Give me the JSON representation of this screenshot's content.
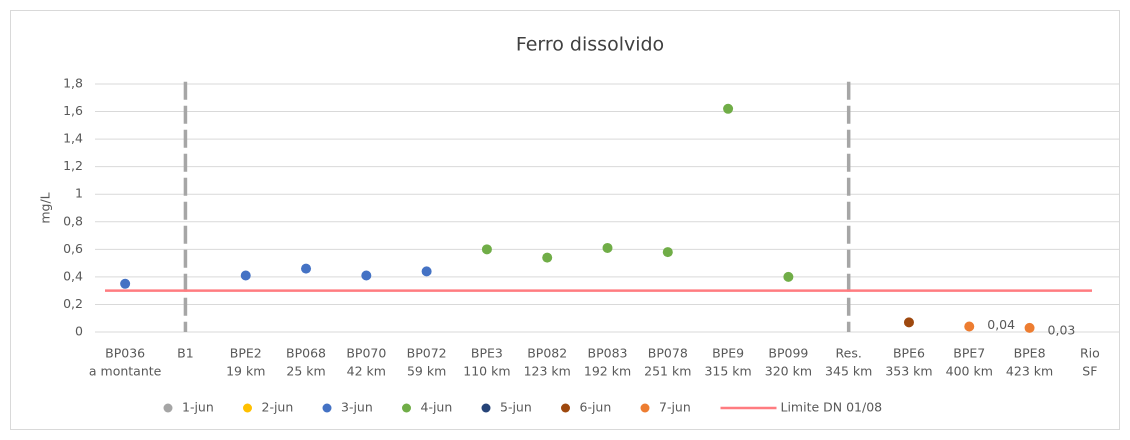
{
  "chart_data": {
    "type": "scatter",
    "title": "Ferro dissolvido",
    "y_label": "mg/L",
    "categories": [
      [
        "BP036",
        "a montante"
      ],
      [
        "B1"
      ],
      [
        "BPE2",
        "19 km"
      ],
      [
        "BP068",
        "25 km"
      ],
      [
        "BP070",
        "42 km"
      ],
      [
        "BP072",
        "59 km"
      ],
      [
        "BPE3",
        "110 km"
      ],
      [
        "BP082",
        "123 km"
      ],
      [
        "BP083",
        "192 km"
      ],
      [
        "BP078",
        "251 km"
      ],
      [
        "BPE9",
        "315 km"
      ],
      [
        "BP099",
        "320 km"
      ],
      [
        "Res.",
        "345 km"
      ],
      [
        "BPE6",
        "353 km"
      ],
      [
        "BPE7",
        "400 km"
      ],
      [
        "BPE8",
        "423 km"
      ],
      [
        "Rio",
        "SF"
      ]
    ],
    "ylim": [
      0,
      1.8
    ],
    "yticks": [
      0,
      {
        "value": 0.2,
        "label": "0,2"
      },
      {
        "value": 0.4,
        "label": "0,4"
      },
      {
        "value": 0.6,
        "label": "0,6"
      },
      {
        "value": 0.8,
        "label": "0,8"
      },
      1,
      {
        "value": 1.2,
        "label": "1,2"
      },
      {
        "value": 1.4,
        "label": "1,4"
      },
      {
        "value": 1.6,
        "label": "1,6"
      },
      {
        "value": 1.8,
        "label": "1,8"
      }
    ],
    "grid": true,
    "legend": "bottom",
    "dividers": {
      "color": "#a6a6a6",
      "categories": [
        1,
        12
      ]
    },
    "series": [
      {
        "name": "1-jun",
        "color": "#a5a5a5",
        "values": [
          null,
          null,
          null,
          null,
          null,
          null,
          null,
          null,
          null,
          null,
          null,
          null,
          null,
          null,
          null,
          null,
          null
        ]
      },
      {
        "name": "2-jun",
        "color": "#ffc000",
        "values": [
          null,
          null,
          null,
          null,
          null,
          null,
          null,
          null,
          null,
          null,
          null,
          null,
          null,
          null,
          null,
          null,
          null
        ]
      },
      {
        "name": "3-jun",
        "color": "#4472c4",
        "values": [
          0.35,
          null,
          0.41,
          0.46,
          0.41,
          0.44,
          null,
          null,
          null,
          null,
          null,
          null,
          null,
          null,
          null,
          null,
          null
        ]
      },
      {
        "name": "4-jun",
        "color": "#70ad47",
        "values": [
          null,
          null,
          null,
          null,
          null,
          null,
          0.6,
          0.54,
          0.61,
          0.58,
          1.62,
          0.4,
          null,
          null,
          null,
          null,
          null
        ]
      },
      {
        "name": "5-jun",
        "color": "#264478",
        "values": [
          null,
          null,
          null,
          null,
          null,
          null,
          null,
          null,
          null,
          null,
          null,
          null,
          null,
          null,
          null,
          null,
          null
        ]
      },
      {
        "name": "6-jun",
        "color": "#9e480e",
        "values": [
          null,
          null,
          null,
          null,
          null,
          null,
          null,
          null,
          null,
          null,
          null,
          null,
          null,
          0.07,
          null,
          null,
          null
        ]
      },
      {
        "name": "7-jun",
        "color": "#ed7d31",
        "values": [
          null,
          null,
          null,
          null,
          null,
          null,
          null,
          null,
          null,
          null,
          null,
          null,
          null,
          null,
          0.04,
          0.03,
          null
        ],
        "value_labels": [
          null,
          null,
          null,
          null,
          null,
          null,
          null,
          null,
          null,
          null,
          null,
          null,
          null,
          null,
          "0,04",
          "0,03",
          null
        ]
      },
      {
        "name": "Limite DN 01/08",
        "color": "#ff7c80",
        "type": "line",
        "values": [
          0.3,
          0.3,
          0.3,
          0.3,
          0.3,
          0.3,
          0.3,
          0.3,
          0.3,
          0.3,
          0.3,
          0.3,
          0.3,
          0.3,
          0.3,
          0.3,
          0.3
        ]
      }
    ]
  }
}
